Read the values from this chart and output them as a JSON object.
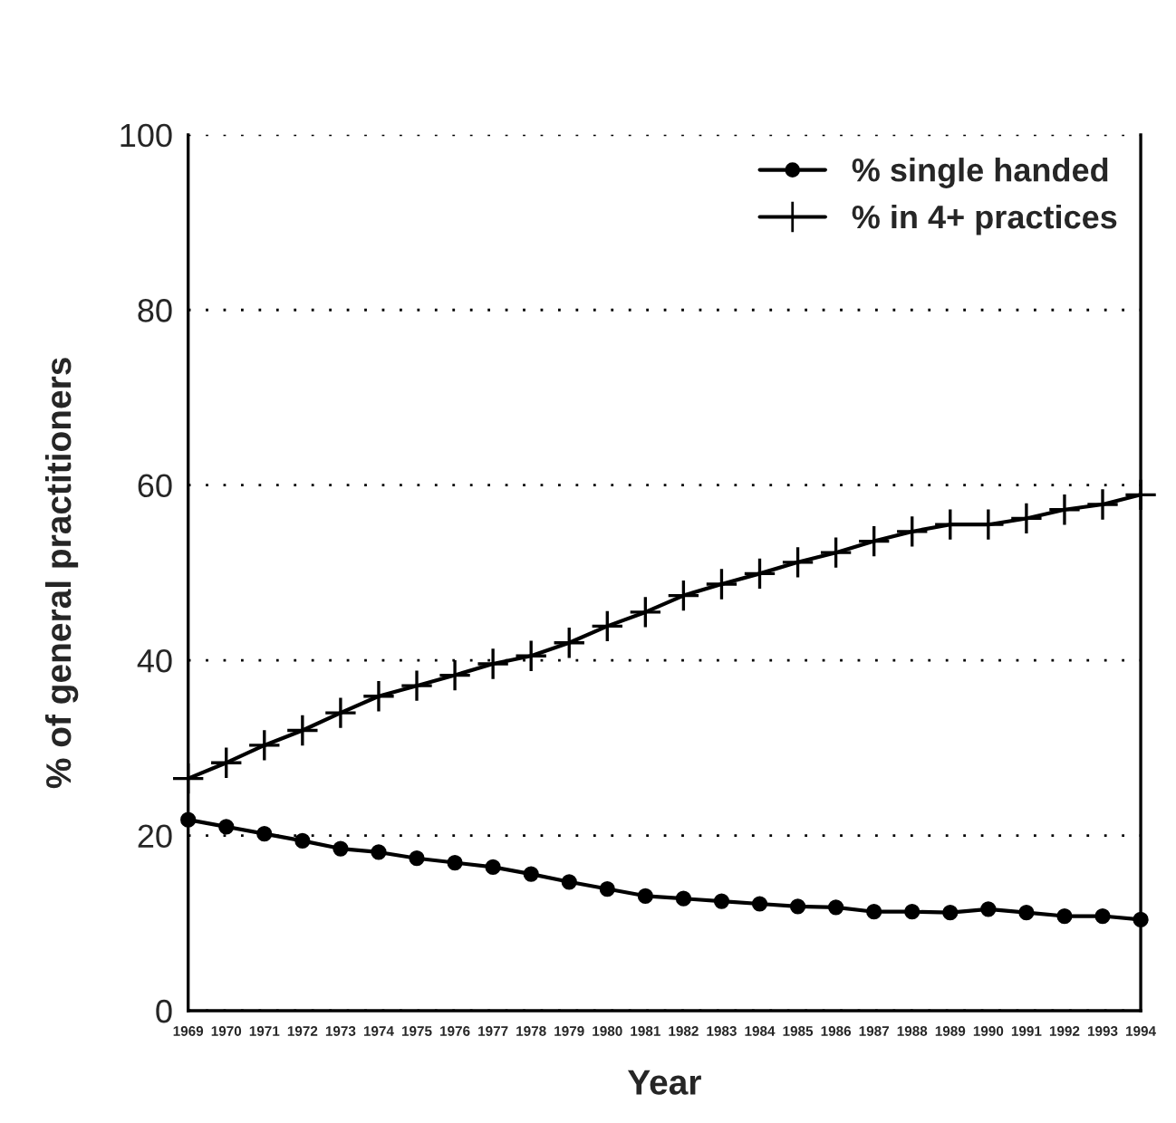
{
  "chart_data": {
    "type": "line",
    "xlabel": "Year",
    "ylabel": "% of general practitioners",
    "categories": [
      "1969",
      "1970",
      "1971",
      "1972",
      "1973",
      "1974",
      "1975",
      "1976",
      "1977",
      "1978",
      "1979",
      "1980",
      "1981",
      "1982",
      "1983",
      "1984",
      "1985",
      "1986",
      "1987",
      "1988",
      "1989",
      "1990",
      "1991",
      "1992",
      "1993",
      "1994"
    ],
    "series": [
      {
        "name": "% single handed",
        "color": "#000000",
        "marker": "circle",
        "values": [
          21.8,
          21.0,
          20.2,
          19.4,
          18.5,
          18.1,
          17.4,
          16.9,
          16.4,
          15.6,
          14.7,
          13.9,
          13.1,
          12.8,
          12.5,
          12.2,
          11.9,
          11.8,
          11.3,
          11.3,
          11.2,
          11.6,
          11.2,
          10.8,
          10.8,
          10.4
        ]
      },
      {
        "name": "% in 4+ practices",
        "color": "#000000",
        "marker": "cross",
        "values": [
          26.5,
          28.3,
          30.3,
          32.0,
          34.0,
          35.9,
          37.1,
          38.3,
          39.6,
          40.5,
          42.0,
          43.9,
          45.5,
          47.4,
          48.7,
          49.9,
          51.2,
          52.3,
          53.6,
          54.7,
          55.5,
          55.5,
          56.2,
          57.2,
          57.8,
          58.9
        ]
      }
    ],
    "ylim": [
      0,
      100
    ],
    "yticks": [
      0,
      20,
      40,
      60,
      80,
      100
    ],
    "grid": "y",
    "legend": "top right",
    "line_style": "solid"
  }
}
